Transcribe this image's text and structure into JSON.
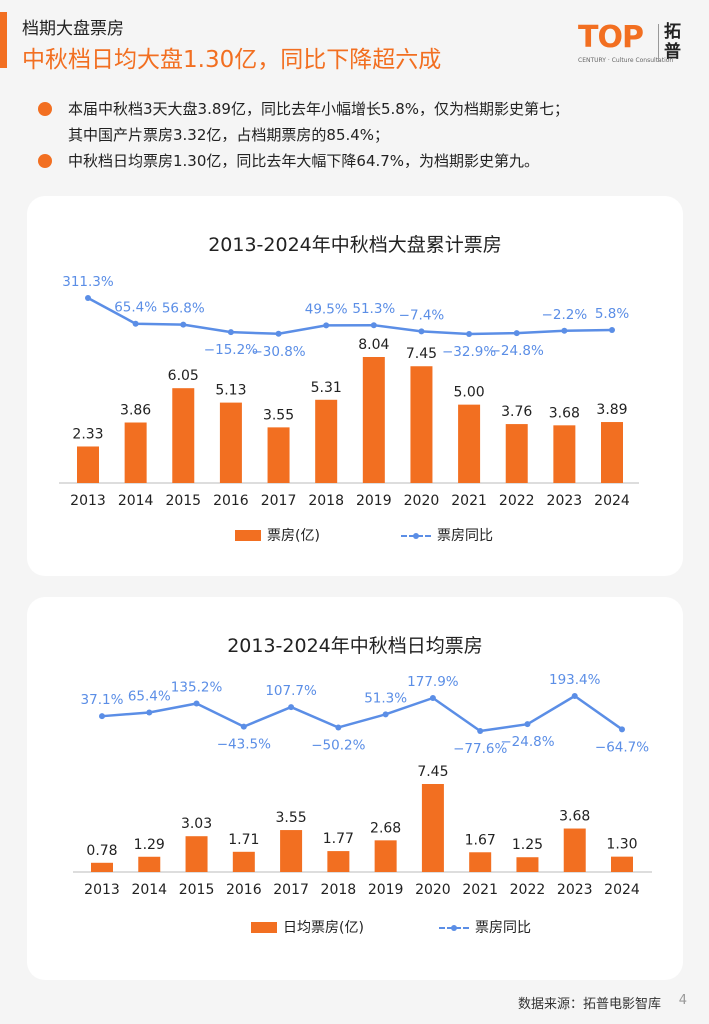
{
  "header": {
    "kicker": "档期大盘票房",
    "headline": "中秋档日均大盘1.30亿，同比下降超六成",
    "logo_text": "TOP",
    "logo_sub": "CENTURY · Culture Consultation",
    "logo_cn": "拓普"
  },
  "bullets": [
    "本届中秋档3天大盘3.89亿，同比去年小幅增长5.8%，仅为档期影史第七；",
    "其中国产片票房3.32亿，占档期票房的85.4%；",
    "中秋档日均票房1.30亿，同比去年大幅下降64.7%，为档期影史第九。"
  ],
  "colors": {
    "accent": "#f26f21",
    "line": "#5b8ee6",
    "card": "#ffffff",
    "page": "#f5f5f5"
  },
  "chart_data": [
    {
      "type": "bar",
      "title": "2013-2024年中秋档大盘累计票房",
      "categories": [
        "2013",
        "2014",
        "2015",
        "2016",
        "2017",
        "2018",
        "2019",
        "2020",
        "2021",
        "2022",
        "2023",
        "2024"
      ],
      "series": [
        {
          "name": "票房(亿)",
          "type": "bar",
          "values": [
            2.33,
            3.86,
            6.05,
            5.13,
            3.55,
            5.31,
            8.04,
            7.45,
            5.0,
            3.76,
            3.68,
            3.89
          ],
          "labels": [
            "2.33",
            "3.86",
            "6.05",
            "5.13",
            "3.55",
            "5.31",
            "8.04",
            "7.45",
            "5.00",
            "3.76",
            "3.68",
            "3.89"
          ]
        },
        {
          "name": "票房同比",
          "type": "line",
          "values": [
            311.3,
            65.4,
            56.8,
            -15.2,
            -30.8,
            49.5,
            51.3,
            -7.4,
            -32.9,
            -24.8,
            -2.2,
            5.8
          ],
          "labels": [
            "311.3%",
            "65.4%",
            "56.8%",
            "−15.2%",
            "−30.8%",
            "49.5%",
            "51.3%",
            "−7.4%",
            "−32.9%",
            "−24.8%",
            "−2.2%",
            "5.8%"
          ]
        }
      ],
      "legend_position": "bottom",
      "grid": false
    },
    {
      "type": "bar",
      "title": "2013-2024年中秋档日均票房",
      "categories": [
        "2013",
        "2014",
        "2015",
        "2016",
        "2017",
        "2018",
        "2019",
        "2020",
        "2021",
        "2022",
        "2023",
        "2024"
      ],
      "series": [
        {
          "name": "日均票房(亿)",
          "type": "bar",
          "values": [
            0.78,
            1.29,
            3.03,
            1.71,
            3.55,
            1.77,
            2.68,
            7.45,
            1.67,
            1.25,
            3.68,
            1.3
          ],
          "labels": [
            "0.78",
            "1.29",
            "3.03",
            "1.71",
            "3.55",
            "1.77",
            "2.68",
            "7.45",
            "1.67",
            "1.25",
            "3.68",
            "1.30"
          ]
        },
        {
          "name": "票房同比",
          "type": "line",
          "values": [
            37.1,
            65.4,
            135.2,
            -43.5,
            107.7,
            -50.2,
            51.3,
            177.9,
            -77.6,
            -24.8,
            193.4,
            -64.7
          ],
          "labels": [
            "37.1%",
            "65.4%",
            "135.2%",
            "−43.5%",
            "107.7%",
            "−50.2%",
            "51.3%",
            "177.9%",
            "−77.6%",
            "−24.8%",
            "193.4%",
            "−64.7%"
          ]
        }
      ],
      "legend_position": "bottom",
      "grid": false
    }
  ],
  "footer": {
    "source": "数据来源：拓普电影智库",
    "page": "4"
  }
}
